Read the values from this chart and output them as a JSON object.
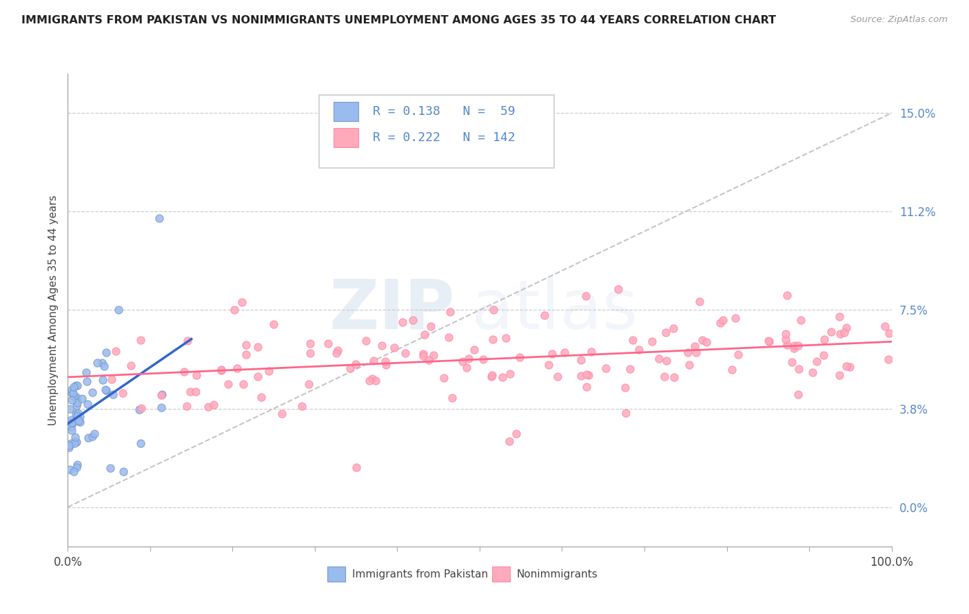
{
  "title": "IMMIGRANTS FROM PAKISTAN VS NONIMMIGRANTS UNEMPLOYMENT AMONG AGES 35 TO 44 YEARS CORRELATION CHART",
  "source": "Source: ZipAtlas.com",
  "ylabel": "Unemployment Among Ages 35 to 44 years",
  "xlim": [
    0,
    100
  ],
  "ylim": [
    -1.5,
    16.5
  ],
  "ytick_positions": [
    0,
    3.75,
    7.5,
    11.25,
    15.0
  ],
  "ytick_labels": [
    "0.0%",
    "3.8%",
    "7.5%",
    "11.2%",
    "15.0%"
  ],
  "xtick_positions": [
    0,
    10,
    20,
    30,
    40,
    50,
    60,
    70,
    80,
    90,
    100
  ],
  "xtick_edge_labels": [
    "0.0%",
    "",
    "",
    "",
    "",
    "",
    "",
    "",
    "",
    "",
    "100.0%"
  ],
  "grid_y_positions": [
    0,
    3.75,
    7.5,
    11.25,
    15.0
  ],
  "blue_color": "#99BBEE",
  "pink_color": "#FFAABB",
  "blue_line_color": "#3366CC",
  "pink_line_color": "#FF6688",
  "axis_label_color": "#5588CC",
  "legend_R1": "R = 0.138",
  "legend_N1": "N =  59",
  "legend_R2": "R = 0.222",
  "legend_N2": "N = 142",
  "watermark_top": "ZIP",
  "watermark_bottom": "atlas"
}
